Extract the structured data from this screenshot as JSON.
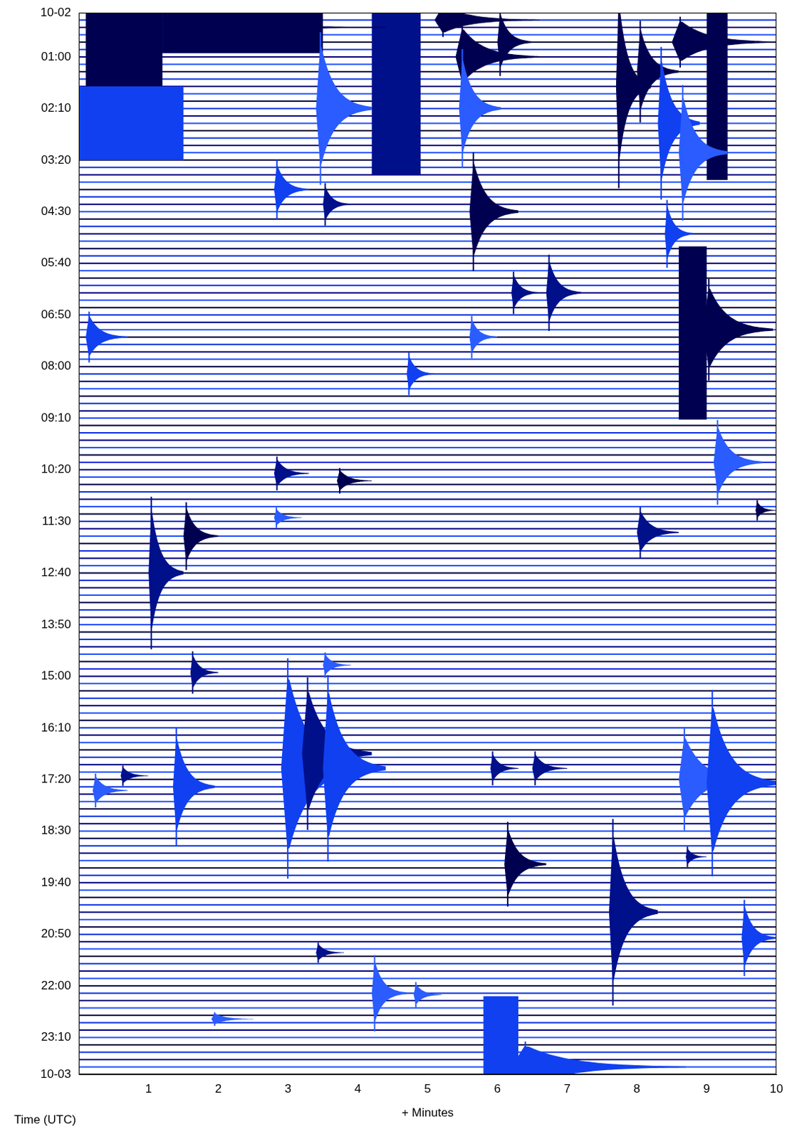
{
  "chart_data": {
    "type": "helicorder",
    "xlabel": "+ Minutes",
    "ylabel": "Time (UTC)",
    "xlim": [
      0,
      10
    ],
    "xticks": [
      1,
      2,
      3,
      4,
      5,
      6,
      7,
      8,
      9,
      10
    ],
    "ylim": [
      0,
      1440
    ],
    "yticks": [
      {
        "value": 0,
        "label": "10-02"
      },
      {
        "value": 60,
        "label": "01:00"
      },
      {
        "value": 130,
        "label": "02:10"
      },
      {
        "value": 200,
        "label": "03:20"
      },
      {
        "value": 270,
        "label": "04:30"
      },
      {
        "value": 340,
        "label": "05:40"
      },
      {
        "value": 410,
        "label": "06:50"
      },
      {
        "value": 480,
        "label": "08:00"
      },
      {
        "value": 550,
        "label": "09:10"
      },
      {
        "value": 620,
        "label": "10:20"
      },
      {
        "value": 690,
        "label": "11:30"
      },
      {
        "value": 760,
        "label": "12:40"
      },
      {
        "value": 830,
        "label": "13:50"
      },
      {
        "value": 900,
        "label": "15:00"
      },
      {
        "value": 970,
        "label": "16:10"
      },
      {
        "value": 1040,
        "label": "17:20"
      },
      {
        "value": 1110,
        "label": "18:30"
      },
      {
        "value": 1180,
        "label": "19:40"
      },
      {
        "value": 1250,
        "label": "20:50"
      },
      {
        "value": 1320,
        "label": "22:00"
      },
      {
        "value": 1390,
        "label": "23:10"
      },
      {
        "value": 1440,
        "label": "10-03"
      }
    ],
    "grid": false,
    "colors": [
      "#000040",
      "#0a30e0",
      "#000080",
      "#2050ff"
    ],
    "blocks": [
      {
        "minute_from": 0.1,
        "minute_to": 1.2,
        "time_from": 0,
        "time_to": 110,
        "color": "#000050"
      },
      {
        "minute_from": 0.0,
        "minute_to": 1.5,
        "time_from": 100,
        "time_to": 200,
        "color": "#1040f0"
      },
      {
        "minute_from": 1.2,
        "minute_to": 3.5,
        "time_from": 0,
        "time_to": 55,
        "color": "#000050"
      },
      {
        "minute_from": 4.2,
        "minute_to": 4.9,
        "time_from": 0,
        "time_to": 220,
        "color": "#00108a"
      },
      {
        "minute_from": 9.0,
        "minute_to": 9.3,
        "time_from": 0,
        "time_to": 227,
        "color": "#000050"
      },
      {
        "minute_from": 8.6,
        "minute_to": 9.0,
        "time_from": 317,
        "time_to": 552,
        "color": "#000050"
      },
      {
        "minute_from": 5.8,
        "minute_to": 6.3,
        "time_from": 1334,
        "time_to": 1440,
        "color": "#1040f0"
      }
    ],
    "events": [
      {
        "minute": 1.2,
        "time": 20,
        "amplitude": 20,
        "duration": 3.2,
        "color": "#000050"
      },
      {
        "minute": 5.1,
        "time": 10,
        "amplitude": 20,
        "duration": 1.5,
        "color": "#000050"
      },
      {
        "minute": 5.4,
        "time": 60,
        "amplitude": 40,
        "duration": 1.2,
        "color": "#000050"
      },
      {
        "minute": 8.5,
        "time": 40,
        "amplitude": 30,
        "duration": 1.5,
        "color": "#000050"
      },
      {
        "minute": 3.4,
        "time": 130,
        "amplitude": 90,
        "duration": 0.8,
        "color": "#2a5cff"
      },
      {
        "minute": 5.45,
        "time": 130,
        "amplitude": 70,
        "duration": 0.6,
        "color": "#2a5cff"
      },
      {
        "minute": 6.0,
        "time": 40,
        "amplitude": 40,
        "duration": 0.5,
        "color": "#000050"
      },
      {
        "minute": 7.7,
        "time": 100,
        "amplitude": 120,
        "duration": 0.5,
        "color": "#000050"
      },
      {
        "minute": 8.0,
        "time": 80,
        "amplitude": 60,
        "duration": 0.6,
        "color": "#000050"
      },
      {
        "minute": 8.3,
        "time": 150,
        "amplitude": 90,
        "duration": 0.6,
        "color": "#1040f0"
      },
      {
        "minute": 8.6,
        "time": 190,
        "amplitude": 80,
        "duration": 0.7,
        "color": "#2a5cff"
      },
      {
        "minute": 2.8,
        "time": 240,
        "amplitude": 35,
        "duration": 0.5,
        "color": "#1040f0"
      },
      {
        "minute": 3.5,
        "time": 260,
        "amplitude": 25,
        "duration": 0.4,
        "color": "#00108a"
      },
      {
        "minute": 5.6,
        "time": 270,
        "amplitude": 70,
        "duration": 0.7,
        "color": "#000050"
      },
      {
        "minute": 8.4,
        "time": 300,
        "amplitude": 40,
        "duration": 0.4,
        "color": "#1040f0"
      },
      {
        "minute": 6.2,
        "time": 380,
        "amplitude": 25,
        "duration": 0.4,
        "color": "#00108a"
      },
      {
        "minute": 6.7,
        "time": 380,
        "amplitude": 45,
        "duration": 0.5,
        "color": "#00108a"
      },
      {
        "minute": 8.95,
        "time": 430,
        "amplitude": 60,
        "duration": 1.0,
        "color": "#000050"
      },
      {
        "minute": 0.1,
        "time": 440,
        "amplitude": 30,
        "duration": 0.6,
        "color": "#1040f0"
      },
      {
        "minute": 5.6,
        "time": 440,
        "amplitude": 25,
        "duration": 0.4,
        "color": "#2a5cff"
      },
      {
        "minute": 4.7,
        "time": 490,
        "amplitude": 25,
        "duration": 0.4,
        "color": "#1040f0"
      },
      {
        "minute": 9.1,
        "time": 610,
        "amplitude": 50,
        "duration": 0.7,
        "color": "#2a5cff"
      },
      {
        "minute": 2.8,
        "time": 625,
        "amplitude": 20,
        "duration": 0.5,
        "color": "#00108a"
      },
      {
        "minute": 3.7,
        "time": 635,
        "amplitude": 15,
        "duration": 0.5,
        "color": "#000050"
      },
      {
        "minute": 1.5,
        "time": 710,
        "amplitude": 40,
        "duration": 0.5,
        "color": "#000050"
      },
      {
        "minute": 1.0,
        "time": 760,
        "amplitude": 90,
        "duration": 0.5,
        "color": "#00108a"
      },
      {
        "minute": 8.0,
        "time": 705,
        "amplitude": 30,
        "duration": 0.6,
        "color": "#00108a"
      },
      {
        "minute": 9.7,
        "time": 675,
        "amplitude": 12,
        "duration": 0.3,
        "color": "#000050"
      },
      {
        "minute": 2.8,
        "time": 685,
        "amplitude": 12,
        "duration": 0.4,
        "color": "#2a5cff"
      },
      {
        "minute": 1.6,
        "time": 895,
        "amplitude": 25,
        "duration": 0.4,
        "color": "#00108a"
      },
      {
        "minute": 3.5,
        "time": 885,
        "amplitude": 15,
        "duration": 0.4,
        "color": "#2a5cff"
      },
      {
        "minute": 2.9,
        "time": 1025,
        "amplitude": 130,
        "duration": 1.2,
        "color": "#1040f0"
      },
      {
        "minute": 3.2,
        "time": 1005,
        "amplitude": 90,
        "duration": 1.0,
        "color": "#00108a"
      },
      {
        "minute": 3.5,
        "time": 1025,
        "amplitude": 110,
        "duration": 0.9,
        "color": "#1040f0"
      },
      {
        "minute": 1.35,
        "time": 1050,
        "amplitude": 70,
        "duration": 0.6,
        "color": "#1040f0"
      },
      {
        "minute": 0.2,
        "time": 1055,
        "amplitude": 20,
        "duration": 0.5,
        "color": "#2a5cff"
      },
      {
        "minute": 0.6,
        "time": 1035,
        "amplitude": 12,
        "duration": 0.4,
        "color": "#00108a"
      },
      {
        "minute": 5.9,
        "time": 1025,
        "amplitude": 20,
        "duration": 0.4,
        "color": "#00108a"
      },
      {
        "minute": 6.5,
        "time": 1025,
        "amplitude": 20,
        "duration": 0.5,
        "color": "#00108a"
      },
      {
        "minute": 8.6,
        "time": 1040,
        "amplitude": 60,
        "duration": 1.0,
        "color": "#2a5cff"
      },
      {
        "minute": 9.0,
        "time": 1045,
        "amplitude": 110,
        "duration": 1.0,
        "color": "#1040f0"
      },
      {
        "minute": 6.1,
        "time": 1155,
        "amplitude": 50,
        "duration": 0.6,
        "color": "#000050"
      },
      {
        "minute": 8.7,
        "time": 1145,
        "amplitude": 12,
        "duration": 0.3,
        "color": "#00108a"
      },
      {
        "minute": 7.6,
        "time": 1220,
        "amplitude": 110,
        "duration": 0.7,
        "color": "#00108a"
      },
      {
        "minute": 9.5,
        "time": 1255,
        "amplitude": 45,
        "duration": 0.5,
        "color": "#1040f0"
      },
      {
        "minute": 3.4,
        "time": 1275,
        "amplitude": 12,
        "duration": 0.4,
        "color": "#00108a"
      },
      {
        "minute": 4.2,
        "time": 1330,
        "amplitude": 45,
        "duration": 0.5,
        "color": "#2a5cff"
      },
      {
        "minute": 4.8,
        "time": 1332,
        "amplitude": 15,
        "duration": 0.4,
        "color": "#2a5cff"
      },
      {
        "minute": 1.9,
        "time": 1365,
        "amplitude": 8,
        "duration": 0.6,
        "color": "#2a5cff"
      },
      {
        "minute": 6.2,
        "time": 1430,
        "amplitude": 30,
        "duration": 2.5,
        "color": "#1040f0"
      }
    ]
  }
}
